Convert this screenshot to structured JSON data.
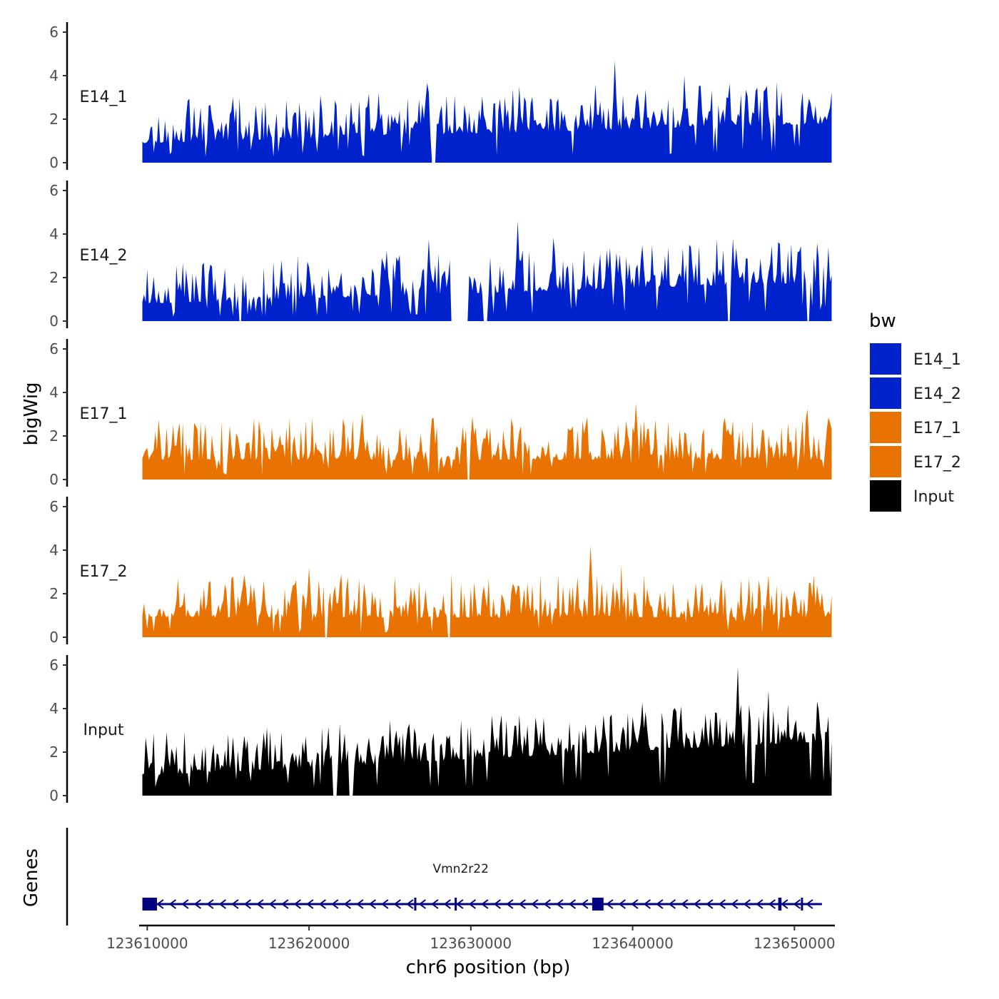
{
  "chart_data": {
    "type": "area",
    "title": "",
    "ylabel": "bigWig",
    "genes_label": "Genes",
    "xlabel": "chr6 position (bp)",
    "xlim": [
      123609500,
      123652500
    ],
    "x_ticks": [
      123610000,
      123620000,
      123630000,
      123640000,
      123650000
    ],
    "x_tick_labels": [
      "123610000",
      "123620000",
      "123630000",
      "123640000",
      "123650000"
    ],
    "ylim": [
      0,
      6
    ],
    "y_ticks": [
      0,
      2,
      4,
      6
    ],
    "y_tick_labels": [
      "0",
      "2",
      "4",
      "6"
    ],
    "legend": {
      "title": "bw",
      "position": "right",
      "entries": [
        {
          "label": "E14_1",
          "color": "#0022CC"
        },
        {
          "label": "E14_2",
          "color": "#0022CC"
        },
        {
          "label": "E17_1",
          "color": "#E87202"
        },
        {
          "label": "E17_2",
          "color": "#E87202"
        },
        {
          "label": "Input",
          "color": "#000000"
        }
      ]
    },
    "coverage_start": 123609700,
    "coverage_end": 123652300,
    "tracks": [
      {
        "name": "E14_1",
        "color": "#0022CC",
        "seed": 11,
        "base": 0.9,
        "trend": 0.9,
        "peaks": [
          [
            123615300,
            3.0
          ],
          [
            123622600,
            2.8
          ],
          [
            123624300,
            3.2
          ],
          [
            123626800,
            2.9
          ],
          [
            123633000,
            3.5
          ],
          [
            123637700,
            3.6
          ],
          [
            123638900,
            4.7
          ],
          [
            123643200,
            4.0
          ],
          [
            123645800,
            3.0
          ],
          [
            123651000,
            2.2
          ]
        ],
        "gaps": [
          [
            123627600,
            123627800
          ]
        ]
      },
      {
        "name": "E14_2",
        "color": "#0022CC",
        "seed": 23,
        "base": 0.8,
        "trend": 1.0,
        "peaks": [
          [
            123613900,
            2.6
          ],
          [
            123618300,
            2.8
          ],
          [
            123624500,
            2.9
          ],
          [
            123628700,
            2.8
          ],
          [
            123632900,
            4.6
          ],
          [
            123638600,
            3.2
          ],
          [
            123642000,
            3.0
          ],
          [
            123643600,
            3.4
          ],
          [
            123646200,
            3.8
          ],
          [
            123650300,
            3.2
          ]
        ],
        "gaps": [
          [
            123615700,
            123615800
          ],
          [
            123628800,
            123629800
          ],
          [
            123630800,
            123631000
          ],
          [
            123645900,
            123646000
          ],
          [
            123650800,
            123650900
          ]
        ]
      },
      {
        "name": "E17_1",
        "color": "#E87202",
        "seed": 37,
        "base": 0.9,
        "trend": 0.0,
        "peaks": [
          [
            123610500,
            2.2
          ],
          [
            123611600,
            2.5
          ],
          [
            123619100,
            2.0
          ],
          [
            123626900,
            2.1
          ],
          [
            123629700,
            2.3
          ],
          [
            123640200,
            3.5
          ],
          [
            123643300,
            2.1
          ],
          [
            123648000,
            2.3
          ],
          [
            123652000,
            2.3
          ]
        ],
        "gaps": [
          [
            123629800,
            123629900
          ]
        ]
      },
      {
        "name": "E17_2",
        "color": "#E87202",
        "seed": 53,
        "base": 0.9,
        "trend": 0.0,
        "peaks": [
          [
            123613500,
            2.0
          ],
          [
            123613800,
            2.5
          ],
          [
            123616100,
            2.3
          ],
          [
            123620000,
            3.2
          ],
          [
            123627200,
            2.2
          ],
          [
            123632000,
            1.8
          ],
          [
            123637400,
            4.2
          ],
          [
            123643900,
            2.5
          ],
          [
            123651400,
            2.4
          ]
        ],
        "gaps": [
          [
            123621000,
            123621100
          ],
          [
            123628600,
            123628700
          ]
        ]
      },
      {
        "name": "Input",
        "color": "#000000",
        "seed": 71,
        "base": 0.9,
        "trend": 1.6,
        "peaks": [
          [
            123611200,
            2.9
          ],
          [
            123615300,
            2.7
          ],
          [
            123624500,
            2.7
          ],
          [
            123625800,
            2.2
          ],
          [
            123626200,
            3.3
          ],
          [
            123634000,
            3.6
          ],
          [
            123638200,
            3.7
          ],
          [
            123643000,
            4.1
          ],
          [
            123645400,
            3.6
          ],
          [
            123646500,
            5.9
          ],
          [
            123648700,
            3.9
          ],
          [
            123651600,
            3.0
          ]
        ],
        "gaps": [
          [
            123621500,
            123621700
          ],
          [
            123622500,
            123622700
          ]
        ]
      }
    ],
    "genes": [
      {
        "name": "Vmn2r22",
        "start": 123609700,
        "end": 123651700,
        "strand": "-",
        "exons": [
          [
            123609700,
            123610600
          ],
          [
            123626500,
            123626600
          ],
          [
            123629000,
            123629100
          ],
          [
            123637500,
            123638200
          ],
          [
            123649000,
            123649200
          ],
          [
            123650400,
            123650500
          ]
        ]
      }
    ],
    "gene_color": "#000080"
  }
}
